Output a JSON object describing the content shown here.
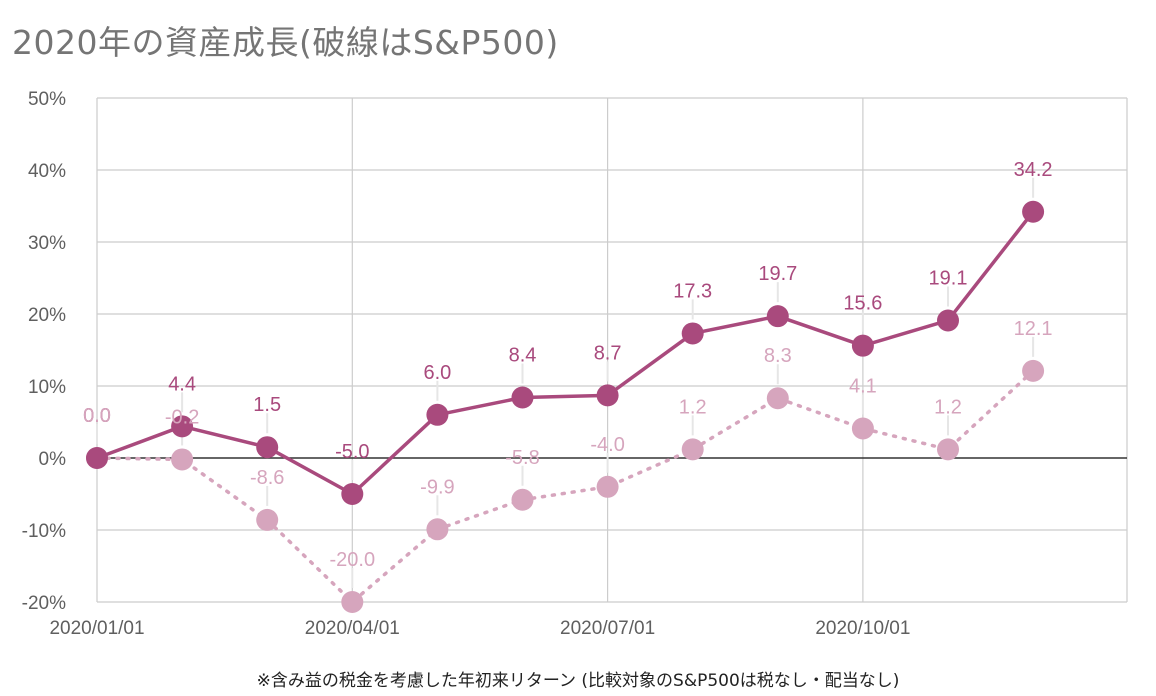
{
  "chart_data": {
    "type": "line",
    "title": "2020年の資産成長(破線はS&P500)",
    "footnote": "※含み益の税金を考慮した年初来リターン (比較対象のS&P500は税なし・配当なし)",
    "x": [
      "2020/01/01",
      "2020/02/01",
      "2020/03/01",
      "2020/04/01",
      "2020/05/01",
      "2020/06/01",
      "2020/07/01",
      "2020/08/01",
      "2020/09/01",
      "2020/10/01",
      "2020/11/01",
      "2020/12/01"
    ],
    "x_tick_labels": [
      "2020/01/01",
      "2020/04/01",
      "2020/07/01",
      "2020/10/01"
    ],
    "y_tick_labels": [
      "-20%",
      "-10%",
      "0%",
      "10%",
      "20%",
      "30%",
      "40%",
      "50%"
    ],
    "ylim": [
      -20,
      50
    ],
    "grid": true,
    "series": [
      {
        "style": "solid",
        "color": "#a94a7d",
        "values": [
          0.0,
          4.4,
          1.5,
          -5.0,
          6.0,
          8.4,
          8.7,
          17.3,
          19.7,
          15.6,
          19.1,
          34.2
        ],
        "labels": [
          "0.0",
          "4.4",
          "1.5",
          "-5.0",
          "6.0",
          "8.4",
          "8.7",
          "17.3",
          "19.7",
          "15.6",
          "19.1",
          "34.2"
        ]
      },
      {
        "name": "S&P500",
        "style": "dotted",
        "color": "#d6a5bd",
        "values": [
          0.0,
          -0.2,
          -8.6,
          -20.0,
          -9.9,
          -5.8,
          -4.0,
          1.2,
          8.3,
          4.1,
          1.2,
          12.1
        ],
        "labels": [
          "0.0",
          "-0.2",
          "-8.6",
          "-20.0",
          "-9.9",
          "-5.8",
          "-4.0",
          "1.2",
          "8.3",
          "4.1",
          "1.2",
          "12.1"
        ]
      }
    ]
  }
}
